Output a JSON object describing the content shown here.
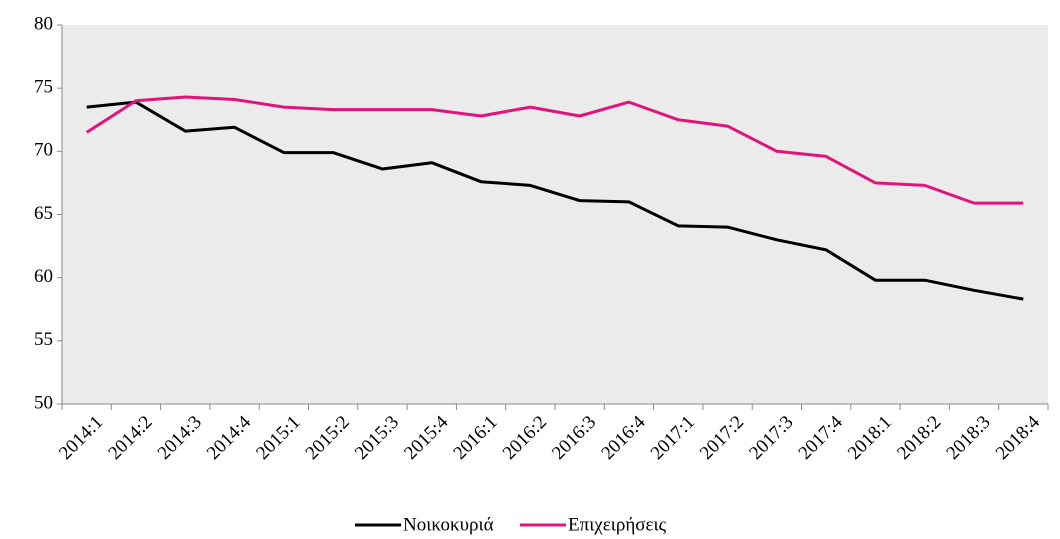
{
  "chart_data": {
    "type": "line",
    "categories": [
      "2014:1",
      "2014:2",
      "2014:3",
      "2014:4",
      "2015:1",
      "2015:2",
      "2015:3",
      "2015:4",
      "2016:1",
      "2016:2",
      "2016:3",
      "2016:4",
      "2017:1",
      "2017:2",
      "2017:3",
      "2017:4",
      "2018:1",
      "2018:2",
      "2018:3",
      "2018:4"
    ],
    "series": [
      {
        "name": "Νοικοκυριά",
        "color": "#000000",
        "values": [
          73.5,
          73.9,
          71.6,
          71.9,
          69.9,
          69.9,
          68.6,
          69.1,
          67.6,
          67.3,
          66.1,
          66.0,
          64.1,
          64.0,
          63.0,
          62.2,
          59.8,
          59.8,
          59.0,
          58.3
        ]
      },
      {
        "name": "Επιχειρήσεις",
        "color": "#e0147a",
        "values": [
          71.5,
          74.0,
          74.3,
          74.1,
          73.5,
          73.3,
          73.3,
          73.3,
          72.8,
          73.5,
          72.8,
          73.9,
          72.5,
          72.0,
          70.0,
          69.6,
          67.5,
          67.3,
          65.9,
          65.9
        ]
      }
    ],
    "ylim": [
      50,
      80
    ],
    "yticks": [
      50,
      55,
      60,
      65,
      70,
      75,
      80
    ],
    "legend": "bottom"
  }
}
